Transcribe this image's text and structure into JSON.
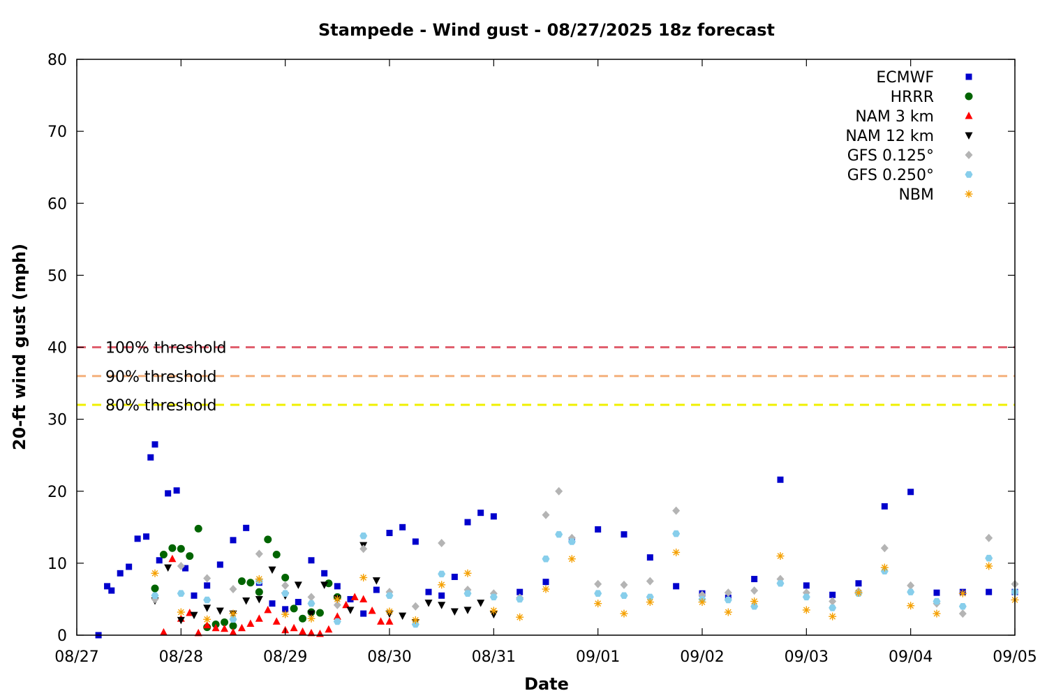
{
  "chart_data": {
    "type": "scatter",
    "title": "Stampede - Wind gust - 08/27/2025 18z forecast",
    "xlabel": "Date",
    "ylabel": "20-ft wind gust (mph)",
    "x_ticks": [
      "08/27",
      "08/28",
      "08/29",
      "08/30",
      "08/31",
      "09/01",
      "09/02",
      "09/03",
      "09/04",
      "09/05"
    ],
    "y_ticks": [
      "0",
      "10",
      "20",
      "30",
      "40",
      "50",
      "60",
      "70",
      "80"
    ],
    "xlim": [
      "2025-08-27",
      "2025-09-05"
    ],
    "ylim": [
      0,
      80
    ],
    "grid": false,
    "legend_position": "top-right",
    "thresholds": [
      {
        "label": "100% threshold",
        "value": 40,
        "color": "#e0606e"
      },
      {
        "label": "90% threshold",
        "value": 36,
        "color": "#f4b07c"
      },
      {
        "label": "80% threshold",
        "value": 32,
        "color": "#f0f000"
      }
    ],
    "series": [
      {
        "name": "ECMWF",
        "marker": "square",
        "color": "#0000cc",
        "x": [
          "08/27 05:00",
          "08/27 07:00",
          "08/27 08:00",
          "08/27 10:00",
          "08/27 12:00",
          "08/27 14:00",
          "08/27 16:00",
          "08/27 17:00",
          "08/27 18:00",
          "08/27 19:00",
          "08/27 21:00",
          "08/27 23:00",
          "08/28 01:00",
          "08/28 03:00",
          "08/28 06:00",
          "08/28 09:00",
          "08/28 12:00",
          "08/28 15:00",
          "08/28 18:00",
          "08/28 21:00",
          "08/29 00:00",
          "08/29 03:00",
          "08/29 06:00",
          "08/29 09:00",
          "08/29 12:00",
          "08/29 15:00",
          "08/29 18:00",
          "08/29 21:00",
          "08/30 00:00",
          "08/30 03:00",
          "08/30 06:00",
          "08/30 09:00",
          "08/30 12:00",
          "08/30 15:00",
          "08/30 18:00",
          "08/30 21:00",
          "08/31 00:00",
          "08/31 06:00",
          "08/31 12:00",
          "08/31 18:00",
          "09/01 00:00",
          "09/01 06:00",
          "09/01 12:00",
          "09/01 18:00",
          "09/02 00:00",
          "09/02 06:00",
          "09/02 12:00",
          "09/02 18:00",
          "09/03 00:00",
          "09/03 06:00",
          "09/03 12:00",
          "09/03 18:00",
          "09/04 00:00",
          "09/04 06:00",
          "09/04 12:00",
          "09/04 18:00",
          "09/05 00:00"
        ],
        "y": [
          0,
          6.8,
          6.2,
          8.6,
          9.5,
          13.4,
          13.7,
          24.7,
          26.5,
          10.4,
          19.7,
          20.1,
          9.3,
          5.5,
          6.9,
          9.8,
          13.2,
          14.9,
          7.3,
          4.4,
          3.6,
          4.6,
          10.4,
          8.6,
          6.8,
          5.0,
          3.0,
          6.3,
          14.2,
          15.0,
          13.0,
          6.0,
          5.5,
          8.1,
          15.7,
          17.0,
          16.5,
          6.0,
          7.4,
          13.2,
          14.7,
          14.0,
          10.8,
          6.8,
          5.8,
          5.2,
          7.8,
          21.6,
          6.9,
          5.6,
          7.2,
          17.9,
          19.9,
          5.9,
          6.0,
          6.0,
          6.0
        ]
      },
      {
        "name": "HRRR",
        "marker": "circle",
        "color": "#006400",
        "x": [
          "08/27 18:00",
          "08/27 20:00",
          "08/27 22:00",
          "08/28 00:00",
          "08/28 02:00",
          "08/28 04:00",
          "08/28 06:00",
          "08/28 08:00",
          "08/28 10:00",
          "08/28 12:00",
          "08/28 14:00",
          "08/28 16:00",
          "08/28 18:00",
          "08/28 20:00",
          "08/28 22:00",
          "08/29 00:00",
          "08/29 02:00",
          "08/29 04:00",
          "08/29 06:00",
          "08/29 08:00",
          "08/29 10:00",
          "08/29 12:00"
        ],
        "y": [
          6.5,
          11.2,
          12.1,
          12.0,
          11.0,
          14.8,
          1.1,
          1.5,
          1.8,
          1.3,
          7.5,
          7.3,
          6.0,
          13.3,
          11.2,
          8.0,
          3.7,
          2.3,
          3.2,
          3.1,
          7.2,
          5.3
        ]
      },
      {
        "name": "NAM 3 km",
        "marker": "triangle-up",
        "color": "#ff0000",
        "x": [
          "08/27 20:00",
          "08/27 22:00",
          "08/28 00:00",
          "08/28 02:00",
          "08/28 04:00",
          "08/28 06:00",
          "08/28 08:00",
          "08/28 10:00",
          "08/28 12:00",
          "08/28 14:00",
          "08/28 16:00",
          "08/28 18:00",
          "08/28 20:00",
          "08/28 22:00",
          "08/29 00:00",
          "08/29 02:00",
          "08/29 04:00",
          "08/29 06:00",
          "08/29 08:00",
          "08/29 10:00",
          "08/29 12:00",
          "08/29 14:00",
          "08/29 16:00",
          "08/29 18:00",
          "08/29 20:00",
          "08/29 22:00",
          "08/30 00:00"
        ],
        "y": [
          0.4,
          10.6,
          2.3,
          3.1,
          0.3,
          1.4,
          1.0,
          0.9,
          0.4,
          1.0,
          1.6,
          2.3,
          3.5,
          1.9,
          0.7,
          1.0,
          0.5,
          0.3,
          0.2,
          0.8,
          2.6,
          4.2,
          5.3,
          5.0,
          3.4,
          1.9,
          1.9
        ]
      },
      {
        "name": "NAM 12 km",
        "marker": "triangle-down",
        "color": "#000000",
        "x": [
          "08/27 18:00",
          "08/27 21:00",
          "08/28 00:00",
          "08/28 03:00",
          "08/28 06:00",
          "08/28 09:00",
          "08/28 12:00",
          "08/28 15:00",
          "08/28 18:00",
          "08/28 21:00",
          "08/29 00:00",
          "08/29 03:00",
          "08/29 06:00",
          "08/29 09:00",
          "08/29 12:00",
          "08/29 15:00",
          "08/29 18:00",
          "08/29 21:00",
          "08/30 00:00",
          "08/30 03:00",
          "08/30 06:00",
          "08/30 09:00",
          "08/30 12:00",
          "08/30 15:00",
          "08/30 18:00",
          "08/30 21:00",
          "08/31 00:00"
        ],
        "y": [
          4.8,
          9.4,
          2.1,
          2.8,
          3.8,
          3.4,
          3.0,
          4.8,
          5.0,
          9.1,
          5.5,
          7.0,
          3.0,
          7.0,
          5.1,
          3.5,
          12.5,
          7.6,
          3.0,
          2.7,
          1.8,
          4.5,
          4.2,
          3.3,
          3.5,
          4.5,
          2.9
        ]
      },
      {
        "name": "GFS 0.125°",
        "marker": "diamond",
        "color": "#b4b4b4",
        "x": [
          "08/27 18:00",
          "08/28 00:00",
          "08/28 06:00",
          "08/28 12:00",
          "08/28 18:00",
          "08/29 00:00",
          "08/29 06:00",
          "08/29 12:00",
          "08/29 18:00",
          "08/30 00:00",
          "08/30 06:00",
          "08/30 12:00",
          "08/30 18:00",
          "08/31 00:00",
          "08/31 06:00",
          "08/31 12:00",
          "08/31 15:00",
          "08/31 18:00",
          "09/01 00:00",
          "09/01 06:00",
          "09/01 12:00",
          "09/01 18:00",
          "09/02 00:00",
          "09/02 06:00",
          "09/02 12:00",
          "09/02 18:00",
          "09/03 00:00",
          "09/03 06:00",
          "09/03 12:00",
          "09/03 18:00",
          "09/04 00:00",
          "09/04 06:00",
          "09/04 12:00",
          "09/04 18:00",
          "09/05 00:00"
        ],
        "y": [
          5.0,
          9.6,
          7.9,
          6.4,
          11.3,
          6.9,
          5.3,
          4.2,
          12.0,
          6.0,
          4.0,
          12.8,
          6.3,
          5.8,
          5.2,
          16.7,
          20.0,
          13.5,
          7.1,
          7.0,
          7.5,
          17.3,
          5.6,
          5.9,
          6.2,
          7.8,
          5.9,
          4.7,
          6.1,
          12.1,
          6.9,
          4.4,
          3.0,
          13.5,
          7.1
        ]
      },
      {
        "name": "GFS 0.250°",
        "marker": "hexagon",
        "color": "#87ceeb",
        "x": [
          "08/27 18:00",
          "08/28 00:00",
          "08/28 06:00",
          "08/28 12:00",
          "08/28 18:00",
          "08/29 00:00",
          "08/29 06:00",
          "08/29 12:00",
          "08/29 18:00",
          "08/30 00:00",
          "08/30 06:00",
          "08/30 12:00",
          "08/30 18:00",
          "08/31 00:00",
          "08/31 06:00",
          "08/31 12:00",
          "08/31 15:00",
          "08/31 18:00",
          "09/01 00:00",
          "09/01 06:00",
          "09/01 12:00",
          "09/01 18:00",
          "09/02 00:00",
          "09/02 06:00",
          "09/02 12:00",
          "09/02 18:00",
          "09/03 00:00",
          "09/03 06:00",
          "09/03 12:00",
          "09/03 18:00",
          "09/04 00:00",
          "09/04 06:00",
          "09/04 12:00",
          "09/04 18:00",
          "09/05 00:00"
        ],
        "y": [
          5.5,
          5.8,
          4.9,
          2.2,
          7.5,
          5.8,
          4.4,
          1.9,
          13.8,
          5.5,
          1.5,
          8.5,
          5.8,
          5.3,
          5.0,
          10.6,
          14.0,
          13.0,
          5.8,
          5.5,
          5.3,
          14.1,
          5.0,
          4.9,
          4.0,
          7.2,
          5.3,
          3.8,
          5.8,
          8.9,
          6.0,
          4.7,
          4.0,
          10.7,
          6.0
        ]
      },
      {
        "name": "NBM",
        "marker": "asterisk",
        "color": "#f5a000",
        "x": [
          "08/27 18:00",
          "08/28 00:00",
          "08/28 06:00",
          "08/28 12:00",
          "08/28 18:00",
          "08/29 00:00",
          "08/29 06:00",
          "08/29 12:00",
          "08/29 18:00",
          "08/30 00:00",
          "08/30 06:00",
          "08/30 12:00",
          "08/30 18:00",
          "08/31 00:00",
          "08/31 06:00",
          "08/31 12:00",
          "08/31 18:00",
          "09/01 00:00",
          "09/01 06:00",
          "09/01 12:00",
          "09/01 18:00",
          "09/02 00:00",
          "09/02 06:00",
          "09/02 12:00",
          "09/02 18:00",
          "09/03 00:00",
          "09/03 06:00",
          "09/03 12:00",
          "09/03 18:00",
          "09/04 00:00",
          "09/04 06:00",
          "09/04 12:00",
          "09/04 18:00",
          "09/05 00:00"
        ],
        "y": [
          8.6,
          3.2,
          2.2,
          3.0,
          7.8,
          2.9,
          2.3,
          5.0,
          8.0,
          3.3,
          2.1,
          7.0,
          8.6,
          3.4,
          2.5,
          6.4,
          10.6,
          4.4,
          3.0,
          4.6,
          11.5,
          4.6,
          3.2,
          4.7,
          11.0,
          3.5,
          2.6,
          5.9,
          9.4,
          4.1,
          3.0,
          5.8,
          9.6,
          4.9
        ]
      }
    ]
  }
}
